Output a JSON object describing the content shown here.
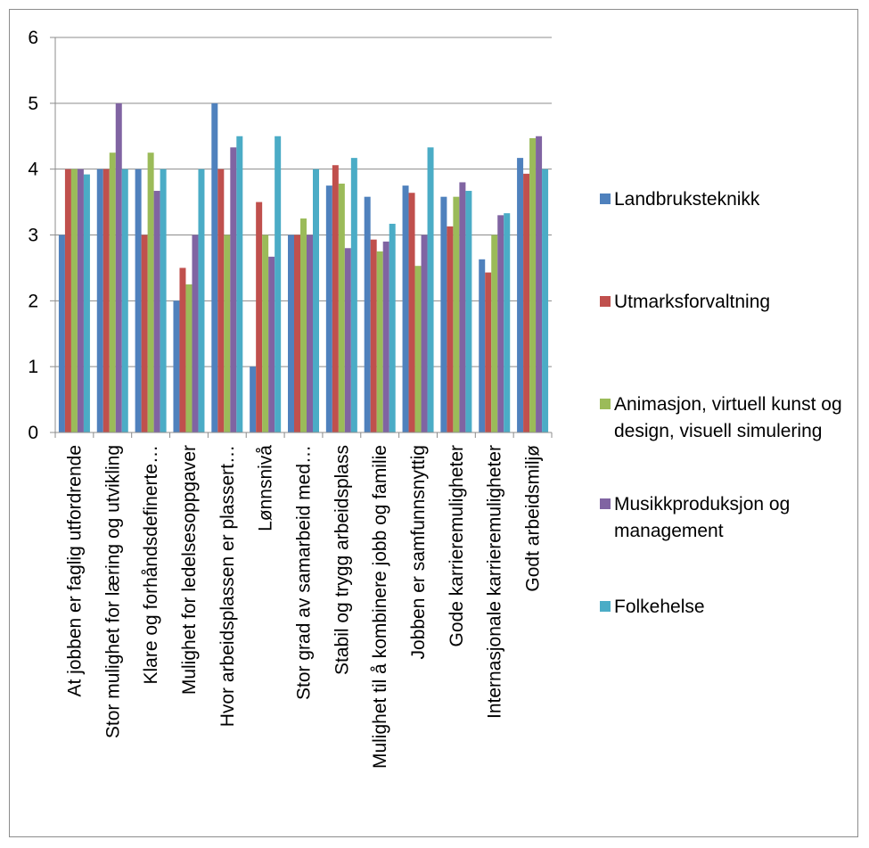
{
  "chart_data": {
    "type": "bar",
    "title": "",
    "xlabel": "",
    "ylabel": "",
    "ylim": [
      0,
      6
    ],
    "yticks": [
      "0",
      "1",
      "2",
      "3",
      "4",
      "5",
      "6"
    ],
    "grid": true,
    "legend_position": "right",
    "categories": [
      "At jobben er faglig utfordrende",
      "Stor mulighet for læring og utvikling",
      "Klare og forhåndsdefinerte…",
      "Mulighet for ledelsesoppgaver",
      "Hvor arbeidsplassen er plassert…",
      "Lønnsnivå",
      "Stor grad av samarbeid med…",
      "Stabil og trygg arbeidsplass",
      "Mulighet til å kombinere jobb og familie",
      "Jobben er samfunnsnyttig",
      "Gode karrieremuligheter",
      "Internasjonale karrieremuligheter",
      "Godt arbeidsmiljø"
    ],
    "series": [
      {
        "name": "Landbruksteknikk",
        "color": "#4f81bd",
        "values": [
          3.0,
          4.0,
          4.0,
          2.0,
          5.0,
          1.0,
          3.0,
          3.75,
          3.58,
          3.75,
          3.58,
          2.63,
          4.17
        ]
      },
      {
        "name": "Utmarksforvaltning",
        "color": "#c0504d",
        "values": [
          4.0,
          4.0,
          3.0,
          2.5,
          4.0,
          3.5,
          3.0,
          4.06,
          2.93,
          3.64,
          3.13,
          2.43,
          3.93
        ]
      },
      {
        "name": "Animasjon, virtuell kunst og design, visuell simulering",
        "color": "#9bbb59",
        "values": [
          4.0,
          4.25,
          4.25,
          2.25,
          3.0,
          3.0,
          3.25,
          3.78,
          2.75,
          2.53,
          3.58,
          3.0,
          4.47
        ]
      },
      {
        "name": "Musikkproduksjon og management",
        "color": "#8064a2",
        "values": [
          4.0,
          5.0,
          3.67,
          3.0,
          4.33,
          2.67,
          3.0,
          2.8,
          2.9,
          3.0,
          3.8,
          3.3,
          4.5
        ]
      },
      {
        "name": "Folkehelse",
        "color": "#4bacc6",
        "values": [
          3.92,
          4.0,
          4.0,
          4.0,
          4.5,
          4.5,
          4.0,
          4.17,
          3.17,
          4.33,
          3.67,
          3.33,
          4.0
        ]
      }
    ]
  }
}
